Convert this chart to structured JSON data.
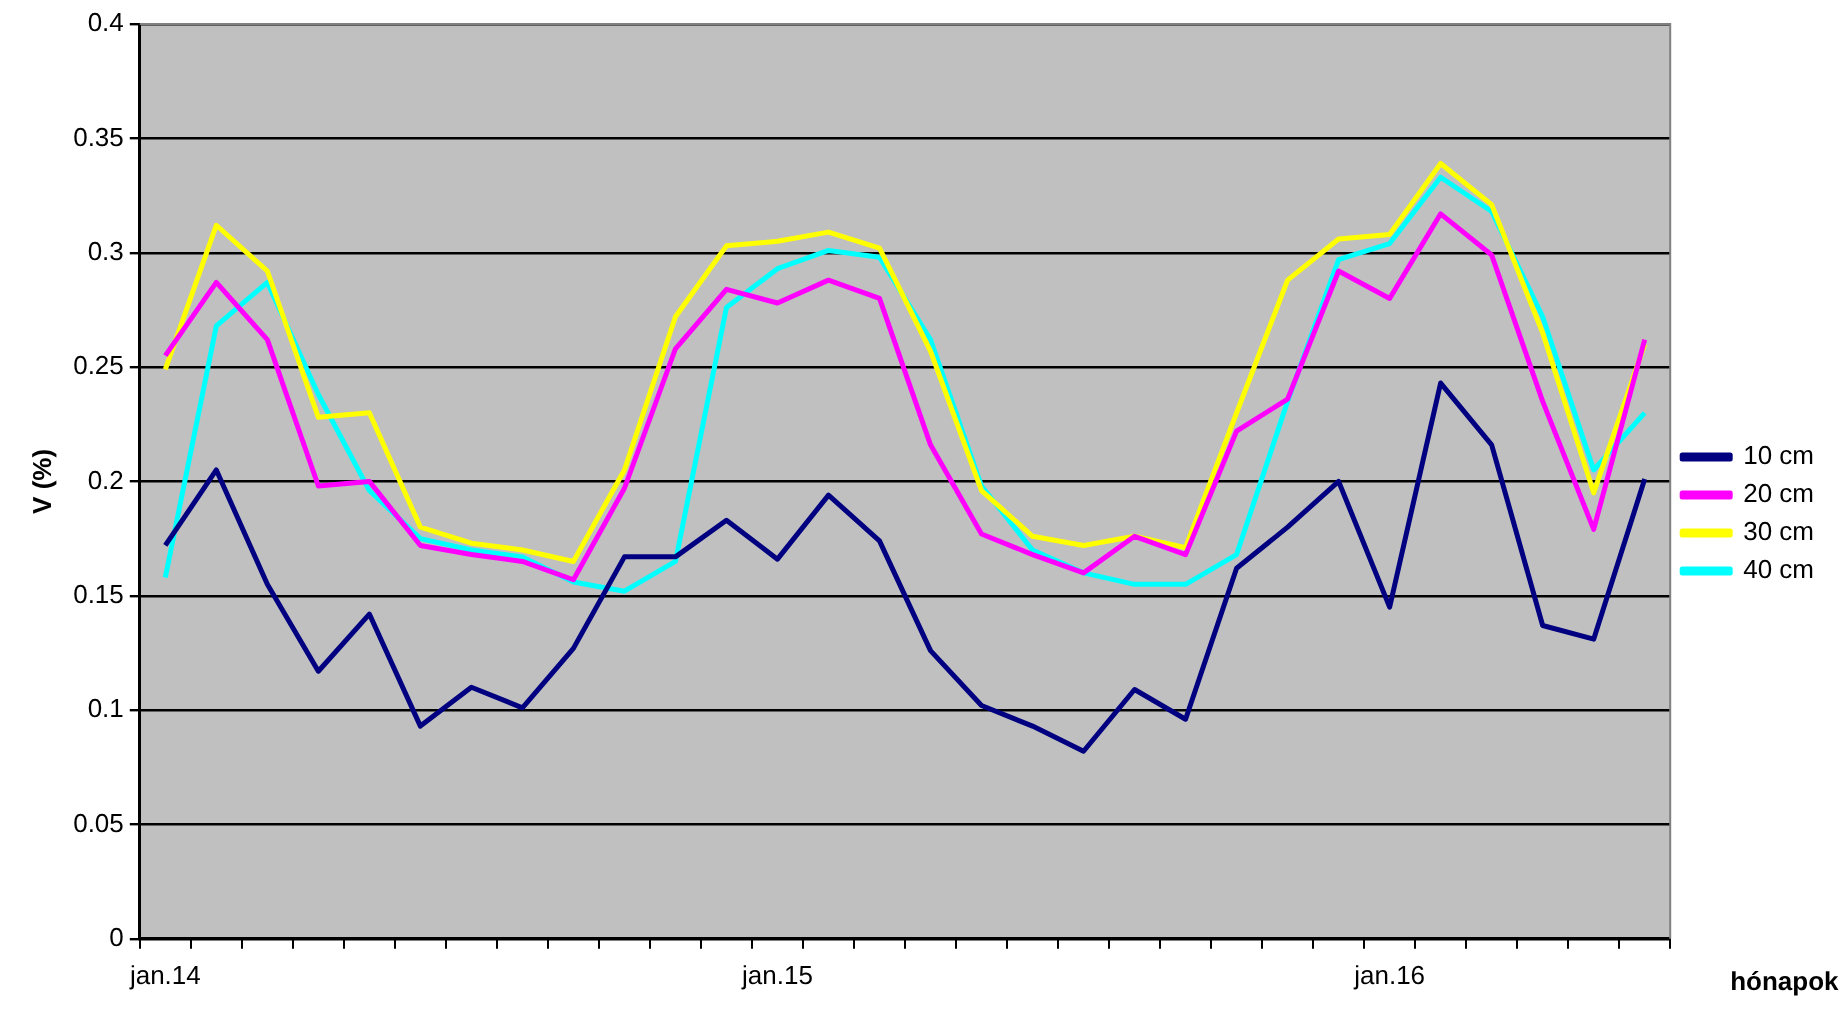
{
  "chart_data": {
    "type": "line",
    "xlabel": "hónapok",
    "ylabel": "V (%)",
    "categories": [
      "jan.14",
      null,
      null,
      null,
      null,
      null,
      null,
      null,
      null,
      null,
      null,
      null,
      "jan.15",
      null,
      null,
      null,
      null,
      null,
      null,
      null,
      null,
      null,
      null,
      null,
      "jan.16",
      null,
      null,
      null,
      null,
      null
    ],
    "series": [
      {
        "name": "10 cm",
        "color": "#000080",
        "values": [
          0.172,
          0.205,
          0.155,
          0.117,
          0.142,
          0.093,
          0.11,
          0.101,
          0.127,
          0.167,
          0.167,
          0.183,
          0.166,
          0.194,
          0.174,
          0.126,
          0.102,
          0.093,
          0.082,
          0.109,
          0.096,
          0.162,
          0.18,
          0.2,
          0.145,
          0.243,
          0.216,
          0.137,
          0.131,
          0.201
        ]
      },
      {
        "name": "20 cm",
        "color": "#ff00ff",
        "values": [
          0.255,
          0.287,
          0.262,
          0.198,
          0.2,
          0.172,
          0.168,
          0.165,
          0.157,
          0.197,
          0.258,
          0.284,
          0.278,
          0.288,
          0.28,
          0.216,
          0.177,
          0.168,
          0.16,
          0.176,
          0.168,
          0.222,
          0.236,
          0.292,
          0.28,
          0.317,
          0.299,
          0.235,
          0.179,
          0.262
        ]
      },
      {
        "name": "30 cm",
        "color": "#ffff00",
        "values": [
          0.249,
          0.312,
          0.292,
          0.228,
          0.23,
          0.18,
          0.173,
          0.17,
          0.165,
          0.205,
          0.272,
          0.303,
          0.305,
          0.309,
          0.302,
          0.257,
          0.196,
          0.176,
          0.172,
          0.176,
          0.171,
          0.23,
          0.288,
          0.306,
          0.308,
          0.339,
          0.321,
          0.265,
          0.195,
          0.26
        ]
      },
      {
        "name": "40 cm",
        "color": "#00ffff",
        "values": [
          0.158,
          0.268,
          0.287,
          0.238,
          0.196,
          0.175,
          0.17,
          0.167,
          0.156,
          0.152,
          0.165,
          0.276,
          0.293,
          0.301,
          0.298,
          0.262,
          0.198,
          0.17,
          0.16,
          0.155,
          0.155,
          0.168,
          0.235,
          0.297,
          0.304,
          0.333,
          0.318,
          0.272,
          0.205,
          0.23
        ]
      }
    ],
    "ylim": [
      0,
      0.4
    ],
    "yticks": [
      0,
      0.05,
      0.1,
      0.15,
      0.2,
      0.25,
      0.3,
      0.35,
      0.4
    ],
    "grid": "y",
    "legend": "right",
    "marker": "none"
  }
}
